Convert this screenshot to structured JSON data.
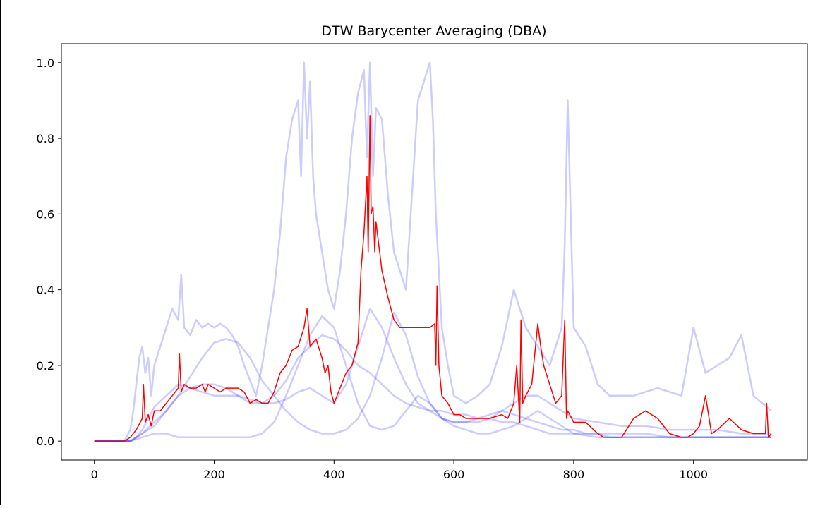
{
  "chart_data": {
    "type": "line",
    "title": "DTW Barycenter Averaging (DBA)",
    "xlabel": "",
    "ylabel": "",
    "xlim": [
      -55,
      1190
    ],
    "ylim": [
      -0.05,
      1.05
    ],
    "x_ticks": [
      0,
      200,
      400,
      600,
      800,
      1000
    ],
    "x_tick_labels": [
      "0",
      "200",
      "400",
      "600",
      "800",
      "1000"
    ],
    "y_ticks": [
      0.0,
      0.2,
      0.4,
      0.6,
      0.8,
      1.0
    ],
    "y_tick_labels": [
      "0.0",
      "0.2",
      "0.4",
      "0.6",
      "0.8",
      "1.0"
    ],
    "grid": false,
    "legend": "none",
    "colors": {
      "input_series": "#0000ff",
      "input_series_alpha": 0.2,
      "barycenter": "#ff0000"
    },
    "series": [
      {
        "role": "input",
        "x": [
          0,
          50,
          60,
          65,
          70,
          75,
          80,
          85,
          90,
          95,
          100,
          110,
          120,
          130,
          140,
          145,
          150,
          160,
          170,
          180,
          190,
          200,
          210,
          220,
          230,
          240,
          250,
          260,
          270,
          280,
          290,
          300,
          310,
          320,
          330,
          340,
          345,
          350,
          355,
          360,
          365,
          370,
          380,
          390,
          400,
          410,
          420,
          430,
          440,
          450,
          455,
          460,
          465,
          470,
          480,
          490,
          500,
          520,
          540,
          560,
          565,
          570,
          580,
          590,
          600,
          620,
          640,
          660,
          680,
          700,
          720,
          740,
          760,
          780,
          785,
          790,
          800,
          820,
          840,
          860,
          880,
          900,
          940,
          980,
          1000,
          1020,
          1060,
          1080,
          1100,
          1130
        ],
        "y": [
          0,
          0,
          0.03,
          0.08,
          0.15,
          0.22,
          0.25,
          0.18,
          0.22,
          0.12,
          0.2,
          0.25,
          0.3,
          0.35,
          0.32,
          0.44,
          0.3,
          0.28,
          0.32,
          0.3,
          0.31,
          0.3,
          0.31,
          0.3,
          0.28,
          0.25,
          0.2,
          0.16,
          0.12,
          0.2,
          0.3,
          0.4,
          0.55,
          0.75,
          0.85,
          0.9,
          0.7,
          1.0,
          0.8,
          0.95,
          0.7,
          0.6,
          0.5,
          0.4,
          0.35,
          0.45,
          0.6,
          0.8,
          0.92,
          0.98,
          0.75,
          1.0,
          0.7,
          0.88,
          0.85,
          0.65,
          0.5,
          0.4,
          0.9,
          1.0,
          0.85,
          0.6,
          0.3,
          0.2,
          0.12,
          0.1,
          0.12,
          0.15,
          0.25,
          0.4,
          0.3,
          0.25,
          0.2,
          0.3,
          0.52,
          0.9,
          0.3,
          0.25,
          0.15,
          0.12,
          0.12,
          0.12,
          0.14,
          0.12,
          0.3,
          0.18,
          0.22,
          0.28,
          0.12,
          0.08
        ]
      },
      {
        "role": "input",
        "x": [
          0,
          60,
          70,
          80,
          100,
          120,
          140,
          160,
          180,
          200,
          220,
          240,
          260,
          280,
          300,
          320,
          340,
          360,
          380,
          400,
          420,
          440,
          460,
          480,
          500,
          520,
          540,
          560,
          580,
          600,
          620,
          640,
          660,
          680,
          700,
          720,
          740,
          760,
          780,
          800,
          820,
          840,
          860,
          880,
          900,
          920,
          940,
          960,
          980,
          1000,
          1020,
          1040,
          1060,
          1080,
          1100,
          1130
        ],
        "y": [
          0,
          0,
          0.01,
          0.02,
          0.04,
          0.08,
          0.12,
          0.17,
          0.22,
          0.26,
          0.27,
          0.26,
          0.22,
          0.16,
          0.12,
          0.08,
          0.05,
          0.03,
          0.02,
          0.02,
          0.03,
          0.06,
          0.12,
          0.22,
          0.34,
          0.28,
          0.17,
          0.1,
          0.06,
          0.05,
          0.05,
          0.05,
          0.06,
          0.05,
          0.05,
          0.04,
          0.03,
          0.02,
          0.02,
          0.02,
          0.02,
          0.02,
          0.01,
          0.01,
          0.01,
          0.01,
          0.01,
          0.01,
          0.01,
          0.01,
          0.01,
          0.01,
          0.01,
          0.01,
          0.01,
          0.01
        ]
      },
      {
        "role": "input",
        "x": [
          0,
          60,
          70,
          80,
          90,
          100,
          120,
          140,
          160,
          180,
          200,
          220,
          240,
          260,
          280,
          300,
          320,
          340,
          360,
          380,
          400,
          420,
          440,
          460,
          480,
          500,
          520,
          540,
          560,
          580,
          600,
          620,
          640,
          660,
          680,
          700,
          720,
          740,
          760,
          780,
          800,
          820,
          840,
          880,
          920,
          960,
          1000,
          1040,
          1080,
          1130
        ],
        "y": [
          0,
          0,
          0.01,
          0.03,
          0.06,
          0.09,
          0.12,
          0.15,
          0.14,
          0.13,
          0.12,
          0.12,
          0.12,
          0.11,
          0.1,
          0.1,
          0.11,
          0.13,
          0.14,
          0.12,
          0.1,
          0.15,
          0.25,
          0.35,
          0.3,
          0.22,
          0.15,
          0.1,
          0.08,
          0.06,
          0.05,
          0.05,
          0.06,
          0.07,
          0.08,
          0.07,
          0.06,
          0.05,
          0.04,
          0.03,
          0.03,
          0.02,
          0.02,
          0.02,
          0.02,
          0.01,
          0.01,
          0.01,
          0.01,
          0.01
        ]
      },
      {
        "role": "input",
        "x": [
          0,
          60,
          80,
          100,
          120,
          140,
          160,
          180,
          200,
          220,
          240,
          260,
          280,
          300,
          320,
          340,
          360,
          380,
          400,
          420,
          440,
          460,
          480,
          500,
          520,
          540,
          560,
          580,
          600,
          620,
          640,
          660,
          680,
          700,
          720,
          740,
          760,
          780,
          800,
          840,
          880,
          920,
          960,
          1000,
          1040,
          1080,
          1130
        ],
        "y": [
          0,
          0,
          0.01,
          0.02,
          0.02,
          0.01,
          0.01,
          0.01,
          0.01,
          0.01,
          0.01,
          0.01,
          0.02,
          0.05,
          0.12,
          0.2,
          0.28,
          0.33,
          0.3,
          0.2,
          0.1,
          0.04,
          0.03,
          0.04,
          0.08,
          0.12,
          0.1,
          0.06,
          0.04,
          0.03,
          0.02,
          0.02,
          0.03,
          0.04,
          0.06,
          0.08,
          0.06,
          0.04,
          0.02,
          0.01,
          0.01,
          0.01,
          0.01,
          0.01,
          0.01,
          0.01,
          0.01
        ]
      },
      {
        "role": "input",
        "x": [
          0,
          60,
          80,
          100,
          120,
          140,
          160,
          180,
          200,
          220,
          240,
          260,
          280,
          300,
          320,
          340,
          360,
          380,
          400,
          420,
          440,
          460,
          480,
          500,
          520,
          540,
          560,
          580,
          600,
          620,
          640,
          660,
          680,
          700,
          720,
          740,
          760,
          780,
          800,
          840,
          880,
          920,
          960,
          1000,
          1040,
          1080,
          1130
        ],
        "y": [
          0,
          0,
          0.02,
          0.05,
          0.08,
          0.12,
          0.14,
          0.15,
          0.15,
          0.14,
          0.12,
          0.1,
          0.1,
          0.12,
          0.16,
          0.22,
          0.25,
          0.28,
          0.27,
          0.24,
          0.2,
          0.18,
          0.15,
          0.12,
          0.1,
          0.09,
          0.08,
          0.08,
          0.07,
          0.07,
          0.06,
          0.06,
          0.08,
          0.1,
          0.12,
          0.12,
          0.1,
          0.08,
          0.06,
          0.05,
          0.04,
          0.04,
          0.03,
          0.03,
          0.03,
          0.02,
          0.02
        ]
      },
      {
        "role": "barycenter",
        "x": [
          0,
          50,
          60,
          70,
          80,
          82,
          85,
          90,
          95,
          100,
          110,
          120,
          130,
          140,
          142,
          145,
          150,
          160,
          170,
          180,
          185,
          190,
          200,
          210,
          220,
          240,
          250,
          260,
          270,
          280,
          290,
          300,
          310,
          320,
          330,
          340,
          350,
          355,
          360,
          370,
          380,
          385,
          390,
          395,
          400,
          410,
          420,
          430,
          440,
          445,
          450,
          455,
          457,
          460,
          462,
          465,
          468,
          470,
          480,
          490,
          500,
          510,
          520,
          530,
          540,
          560,
          568,
          570,
          572,
          575,
          580,
          590,
          600,
          610,
          620,
          640,
          660,
          680,
          690,
          700,
          705,
          710,
          712,
          715,
          720,
          730,
          740,
          745,
          750,
          760,
          770,
          780,
          785,
          788,
          790,
          800,
          820,
          840,
          850,
          860,
          880,
          900,
          920,
          940,
          960,
          980,
          990,
          1000,
          1010,
          1020,
          1030,
          1040,
          1060,
          1080,
          1100,
          1120,
          1122,
          1125,
          1130
        ],
        "y": [
          0,
          0,
          0.01,
          0.03,
          0.06,
          0.15,
          0.05,
          0.07,
          0.04,
          0.08,
          0.08,
          0.1,
          0.12,
          0.14,
          0.23,
          0.13,
          0.15,
          0.14,
          0.14,
          0.15,
          0.13,
          0.15,
          0.14,
          0.13,
          0.14,
          0.14,
          0.13,
          0.1,
          0.11,
          0.1,
          0.1,
          0.13,
          0.18,
          0.2,
          0.24,
          0.25,
          0.3,
          0.35,
          0.25,
          0.27,
          0.22,
          0.18,
          0.2,
          0.13,
          0.1,
          0.14,
          0.18,
          0.2,
          0.26,
          0.45,
          0.55,
          0.7,
          0.5,
          0.86,
          0.6,
          0.62,
          0.5,
          0.58,
          0.45,
          0.38,
          0.32,
          0.3,
          0.3,
          0.3,
          0.3,
          0.3,
          0.31,
          0.2,
          0.41,
          0.2,
          0.12,
          0.1,
          0.07,
          0.07,
          0.06,
          0.06,
          0.06,
          0.07,
          0.06,
          0.1,
          0.2,
          0.05,
          0.32,
          0.1,
          0.12,
          0.15,
          0.31,
          0.25,
          0.2,
          0.15,
          0.1,
          0.12,
          0.32,
          0.06,
          0.08,
          0.05,
          0.05,
          0.02,
          0.01,
          0.01,
          0.01,
          0.06,
          0.08,
          0.06,
          0.02,
          0.01,
          0.01,
          0.02,
          0.04,
          0.12,
          0.02,
          0.03,
          0.06,
          0.03,
          0.02,
          0.02,
          0.1,
          0.01,
          0.02
        ]
      }
    ]
  }
}
